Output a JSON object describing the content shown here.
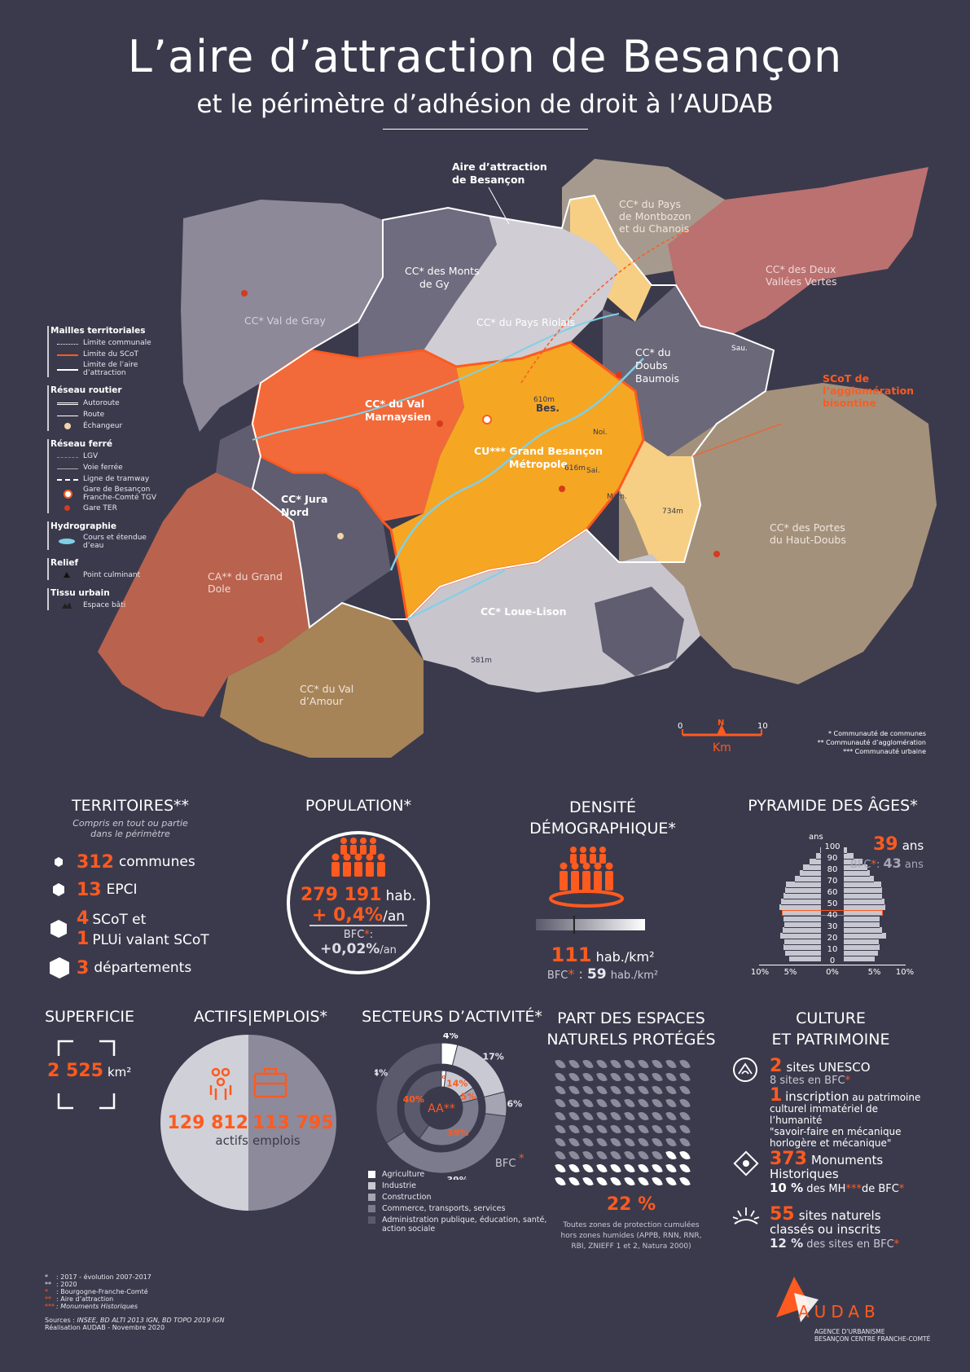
{
  "header": {
    "title": "L’aire d’attraction de Besançon",
    "subtitle": "et le périmètre d’adhésion de droit à l’AUDAB"
  },
  "map": {
    "callout_aa": [
      "Aire d’attraction",
      "de Besançon"
    ],
    "callout_scot": [
      "SCoT de",
      "l’agglomération",
      "bisontine"
    ],
    "territories": [
      {
        "name": [
          "CC* Val de Gray"
        ]
      },
      {
        "name": [
          "CC* des Monts",
          "de Gy"
        ]
      },
      {
        "name": [
          "CC* du Pays",
          "de Montbozon",
          "et du Chanois"
        ]
      },
      {
        "name": [
          "CC* des Deux",
          "Vallées Vertes"
        ]
      },
      {
        "name": [
          "CC* du Pays Riolais"
        ]
      },
      {
        "name": [
          "CC* du",
          "Doubs",
          "Baumois"
        ]
      },
      {
        "name": [
          "CC* du Val",
          "Marnaysien"
        ]
      },
      {
        "name": [
          "CU*** Grand Besançon",
          "Métropole"
        ]
      },
      {
        "name": [
          "CC* Jura",
          "Nord"
        ]
      },
      {
        "name": [
          "CC* des Portes",
          "du Haut-Doubs"
        ]
      },
      {
        "name": [
          "CA** du Grand",
          "Dole"
        ]
      },
      {
        "name": [
          "CC* Loue-Lison"
        ]
      },
      {
        "name": [
          "CC* du Val",
          "d’Amour"
        ]
      }
    ],
    "places": [
      "Bes.",
      "610m",
      "616m",
      "734m",
      "581m",
      "Sau.",
      "Mam.",
      "Sai.",
      "Noi."
    ],
    "scale": {
      "start": "0",
      "end": "10",
      "unit": "Km",
      "north": "N"
    },
    "notes": [
      "* Communauté de communes",
      "** Communauté d’agglomération",
      "*** Communauté urbaine"
    ]
  },
  "legend": {
    "sections": [
      {
        "title": "Mailles territoriales",
        "items": [
          "Limite communale",
          "Limite du SCoT",
          "Limite de l’aire d’attraction"
        ]
      },
      {
        "title": "Réseau routier",
        "items": [
          "Autoroute",
          "Route",
          "Échangeur"
        ]
      },
      {
        "title": "Réseau ferré",
        "items": [
          "LGV",
          "Voie ferrée",
          "Ligne de tramway",
          "Gare de Besançon Franche-Comté TGV",
          "Gare TER"
        ]
      },
      {
        "title": "Hydrographie",
        "items": [
          "Cours et étendue d’eau"
        ]
      },
      {
        "title": "Relief",
        "items": [
          "Point culminant"
        ]
      },
      {
        "title": "Tissu urbain",
        "items": [
          "Espace bâti"
        ]
      }
    ]
  },
  "territoires": {
    "title": "TERRITOIRES**",
    "note": [
      "Compris en tout ou partie",
      "dans le périmètre"
    ],
    "rows": [
      {
        "num": "312",
        "label": "communes"
      },
      {
        "num": "13",
        "label": "EPCI"
      },
      {
        "num": "4",
        "label": "SCoT et",
        "num2": "1",
        "label2": "PLUi valant SCoT"
      },
      {
        "num": "3",
        "label": "départements"
      }
    ]
  },
  "population": {
    "title": "POPULATION*",
    "value": "279 191",
    "unit": "hab.",
    "evol": "+ 0,4%",
    "evol_unit": "/an",
    "bfc_label": "BFC",
    "bfc_value": "+0,02%",
    "bfc_unit": "/an"
  },
  "densite": {
    "title": [
      "DENSITÉ",
      "DÉMOGRAPHIQUE*"
    ],
    "value": "111",
    "unit": "hab./km²",
    "bfc_label": "BFC",
    "bfc_value": "59",
    "bfc_unit": "hab./km²",
    "gauge_fraction": 0.35
  },
  "pyramide": {
    "title": "PYRAMIDE DES ÂGES*",
    "age_label": "ans",
    "ticks": [
      "100",
      "90",
      "80",
      "70",
      "60",
      "50",
      "40",
      "30",
      "20",
      "10",
      "0"
    ],
    "x_ticks": [
      "10%",
      "5%",
      "0%",
      "5%",
      "10%"
    ],
    "median": "39",
    "median_unit": "ans",
    "bfc_label": "BFC",
    "bfc_median": "43",
    "bfc_unit": "ans",
    "highlight_age": 40
  },
  "chart_data": {
    "type": "bar",
    "title": "PYRAMIDE DES ÂGES*",
    "age_groups": [
      "0-4",
      "5-9",
      "10-14",
      "15-19",
      "20-24",
      "25-29",
      "30-34",
      "35-39",
      "40-44",
      "45-49",
      "50-54",
      "55-59",
      "60-64",
      "65-69",
      "70-74",
      "75-79",
      "80-84",
      "85-89",
      "90-94",
      "95-99"
    ],
    "series": [
      {
        "name": "left",
        "values": [
          5.2,
          5.9,
          6.1,
          6.0,
          6.7,
          6.3,
          6.0,
          6.1,
          6.4,
          6.8,
          6.5,
          6.1,
          5.9,
          5.7,
          4.3,
          3.5,
          2.9,
          1.9,
          0.8,
          0.2
        ]
      },
      {
        "name": "right",
        "values": [
          5.0,
          5.6,
          5.8,
          5.7,
          6.9,
          6.2,
          5.8,
          5.9,
          6.2,
          6.8,
          6.6,
          6.3,
          6.2,
          6.1,
          4.9,
          4.2,
          3.9,
          3.0,
          1.6,
          0.5
        ]
      }
    ],
    "xlim": [
      -10,
      10
    ],
    "ylim": [
      0,
      100
    ]
  },
  "superficie": {
    "title": "SUPERFICIE",
    "value": "2 525",
    "unit": "km²"
  },
  "actifs": {
    "title": "ACTIFS|EMPLOIS*",
    "actifs_value": "129 812",
    "actifs_label": "actifs",
    "emplois_value": "113 795",
    "emplois_label": "emplois"
  },
  "secteurs": {
    "title": "SECTEURS D’ACTIVITÉ*",
    "center": "AA**",
    "bfc": "BFC",
    "inner": [
      {
        "label": "2%",
        "value": 2
      },
      {
        "label": "14%",
        "value": 14
      },
      {
        "label": "5%",
        "value": 5
      },
      {
        "label": "39%",
        "value": 39
      },
      {
        "label": "40%",
        "value": 40
      }
    ],
    "outer": [
      {
        "label": "4%",
        "value": 4
      },
      {
        "label": "17%",
        "value": 17
      },
      {
        "label": "6%",
        "value": 6
      },
      {
        "label": "39%",
        "value": 39
      },
      {
        "label": "34%",
        "value": 34
      }
    ],
    "legend": [
      "Agriculture",
      "Industrie",
      "Construction",
      "Commerce, transports, services",
      "Administration publique, éducation, santé, action sociale"
    ],
    "colors": [
      "#ffffff",
      "#c9c9d3",
      "#a4a4b3",
      "#7b7b8d",
      "#5a5a6c"
    ]
  },
  "espaces": {
    "title": [
      "PART DES ESPACES",
      "NATURELS PROTÉGÉS"
    ],
    "value": "22 %",
    "fraction": 0.22,
    "note": [
      "Toutes zones de protection cumulées",
      "hors zones humides (APPB, RNN, RNR,",
      "RBI, ZNIEFF 1 et 2, Natura 2000)"
    ]
  },
  "culture": {
    "title": [
      "CULTURE",
      "ET PATRIMOINE"
    ],
    "unesco_num": "2",
    "unesco_label": "sites UNESCO",
    "unesco_bfc": "8 sites en BFC",
    "insc_num": "1",
    "insc_label": "inscription",
    "insc_rest": "au patrimoine",
    "insc_lines": [
      "culturel immatériel de l’humanité",
      "\"savoir-faire en mécanique",
      "horlogère et mécanique\""
    ],
    "mh_num": "373",
    "mh_label": [
      "Monuments",
      "Historiques"
    ],
    "mh_pct": "10 %",
    "mh_rest": "des MH",
    "mh_rest2": "de BFC",
    "sites_num": "55",
    "sites_label": [
      "sites naturels",
      "classés ou inscrits"
    ],
    "sites_pct": "12 %",
    "sites_rest": "des sites en BFC"
  },
  "footer": {
    "notes": [
      {
        "mark": "*",
        "text": ": 2017 - évolution 2007-2017"
      },
      {
        "mark": "**",
        "text": ": 2020"
      },
      {
        "mark": "*",
        "text": ": Bourgogne-Franche-Comté"
      },
      {
        "mark": "**",
        "text": ": Aire d’attraction"
      },
      {
        "mark": "***",
        "text": ": Monuments Historiques"
      }
    ],
    "sources_label": "Sources :",
    "sources": "INSEE, BD ALTI 2013 IGN, BD TOPO 2019 IGN",
    "realisation": "Réalisation AUDAB - Novembre 2020"
  },
  "logo": {
    "name": "AUDAB",
    "line1": "AGENCE D’URBANISME",
    "line2": "BESANÇON CENTRE FRANCHE-COMTÉ"
  }
}
